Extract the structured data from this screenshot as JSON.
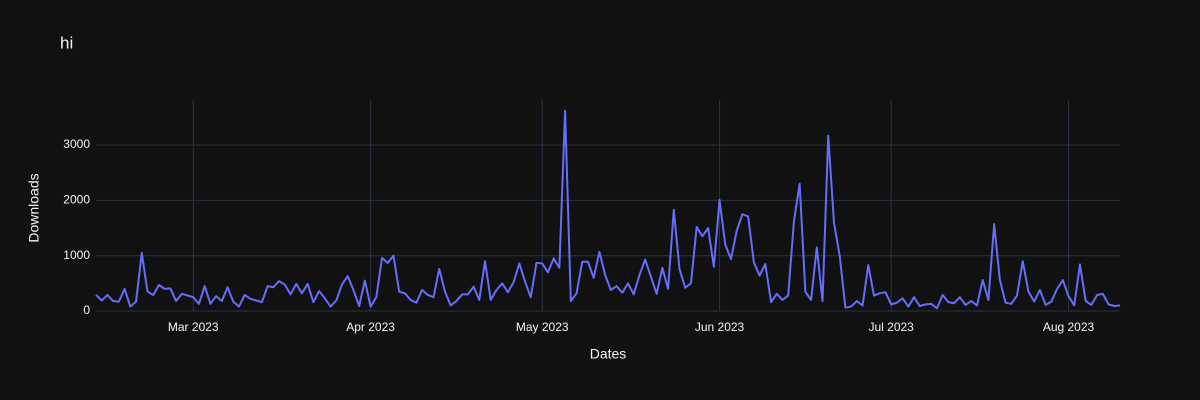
{
  "chart_data": {
    "type": "line",
    "title": "hi",
    "x_label": "Dates",
    "y_label": "Downloads",
    "x": [
      "2023-02-12",
      "2023-02-13",
      "2023-02-14",
      "2023-02-15",
      "2023-02-16",
      "2023-02-17",
      "2023-02-18",
      "2023-02-19",
      "2023-02-20",
      "2023-02-21",
      "2023-02-22",
      "2023-02-23",
      "2023-02-24",
      "2023-02-25",
      "2023-02-26",
      "2023-02-27",
      "2023-02-28",
      "2023-03-01",
      "2023-03-02",
      "2023-03-03",
      "2023-03-04",
      "2023-03-05",
      "2023-03-06",
      "2023-03-07",
      "2023-03-08",
      "2023-03-09",
      "2023-03-10",
      "2023-03-11",
      "2023-03-12",
      "2023-03-13",
      "2023-03-14",
      "2023-03-15",
      "2023-03-16",
      "2023-03-17",
      "2023-03-18",
      "2023-03-19",
      "2023-03-20",
      "2023-03-21",
      "2023-03-22",
      "2023-03-23",
      "2023-03-24",
      "2023-03-25",
      "2023-03-26",
      "2023-03-27",
      "2023-03-28",
      "2023-03-29",
      "2023-03-30",
      "2023-03-31",
      "2023-04-01",
      "2023-04-02",
      "2023-04-03",
      "2023-04-04",
      "2023-04-05",
      "2023-04-06",
      "2023-04-07",
      "2023-04-08",
      "2023-04-09",
      "2023-04-10",
      "2023-04-11",
      "2023-04-12",
      "2023-04-13",
      "2023-04-14",
      "2023-04-15",
      "2023-04-16",
      "2023-04-17",
      "2023-04-18",
      "2023-04-19",
      "2023-04-20",
      "2023-04-21",
      "2023-04-22",
      "2023-04-23",
      "2023-04-24",
      "2023-04-25",
      "2023-04-26",
      "2023-04-27",
      "2023-04-28",
      "2023-04-29",
      "2023-04-30",
      "2023-05-01",
      "2023-05-02",
      "2023-05-03",
      "2023-05-04",
      "2023-05-05",
      "2023-05-06",
      "2023-05-07",
      "2023-05-08",
      "2023-05-09",
      "2023-05-10",
      "2023-05-11",
      "2023-05-12",
      "2023-05-13",
      "2023-05-14",
      "2023-05-15",
      "2023-05-16",
      "2023-05-17",
      "2023-05-18",
      "2023-05-19",
      "2023-05-20",
      "2023-05-21",
      "2023-05-22",
      "2023-05-23",
      "2023-05-24",
      "2023-05-25",
      "2023-05-26",
      "2023-05-27",
      "2023-05-28",
      "2023-05-29",
      "2023-05-30",
      "2023-05-31",
      "2023-06-01",
      "2023-06-02",
      "2023-06-03",
      "2023-06-04",
      "2023-06-05",
      "2023-06-06",
      "2023-06-07",
      "2023-06-08",
      "2023-06-09",
      "2023-06-10",
      "2023-06-11",
      "2023-06-12",
      "2023-06-13",
      "2023-06-14",
      "2023-06-15",
      "2023-06-16",
      "2023-06-17",
      "2023-06-18",
      "2023-06-19",
      "2023-06-20",
      "2023-06-21",
      "2023-06-22",
      "2023-06-23",
      "2023-06-24",
      "2023-06-25",
      "2023-06-26",
      "2023-06-27",
      "2023-06-28",
      "2023-06-29",
      "2023-06-30",
      "2023-07-01",
      "2023-07-02",
      "2023-07-03",
      "2023-07-04",
      "2023-07-05",
      "2023-07-06",
      "2023-07-07",
      "2023-07-08",
      "2023-07-09",
      "2023-07-10",
      "2023-07-11",
      "2023-07-12",
      "2023-07-13",
      "2023-07-14",
      "2023-07-15",
      "2023-07-16",
      "2023-07-17",
      "2023-07-18",
      "2023-07-19",
      "2023-07-20",
      "2023-07-21",
      "2023-07-22",
      "2023-07-23",
      "2023-07-24",
      "2023-07-25",
      "2023-07-26",
      "2023-07-27",
      "2023-07-28",
      "2023-07-29",
      "2023-07-30",
      "2023-07-31",
      "2023-08-01",
      "2023-08-02",
      "2023-08-03",
      "2023-08-04",
      "2023-08-05",
      "2023-08-06",
      "2023-08-07",
      "2023-08-08",
      "2023-08-09",
      "2023-08-10"
    ],
    "values": [
      290,
      190,
      290,
      180,
      170,
      400,
      80,
      170,
      1050,
      350,
      290,
      470,
      400,
      410,
      180,
      310,
      280,
      250,
      130,
      450,
      130,
      270,
      180,
      430,
      170,
      80,
      290,
      220,
      190,
      160,
      450,
      430,
      540,
      480,
      300,
      490,
      320,
      490,
      160,
      360,
      230,
      80,
      190,
      480,
      630,
      380,
      90,
      550,
      80,
      250,
      960,
      870,
      1000,
      350,
      320,
      200,
      150,
      380,
      290,
      250,
      760,
      350,
      100,
      180,
      300,
      300,
      440,
      200,
      900,
      200,
      380,
      500,
      340,
      520,
      860,
      530,
      250,
      870,
      860,
      700,
      950,
      780,
      3620,
      180,
      320,
      890,
      890,
      600,
      1070,
      650,
      380,
      450,
      330,
      500,
      300,
      650,
      930,
      620,
      310,
      780,
      400,
      1830,
      760,
      420,
      500,
      1520,
      1350,
      1500,
      800,
      2010,
      1200,
      940,
      1450,
      1750,
      1710,
      880,
      640,
      850,
      160,
      310,
      200,
      280,
      1620,
      2300,
      350,
      200,
      1150,
      180,
      3170,
      1600,
      1000,
      60,
      80,
      180,
      100,
      830,
      280,
      320,
      340,
      120,
      150,
      230,
      80,
      250,
      90,
      120,
      130,
      50,
      290,
      160,
      140,
      250,
      110,
      180,
      100,
      560,
      200,
      1570,
      560,
      150,
      130,
      280,
      900,
      350,
      170,
      380,
      110,
      170,
      400,
      560,
      270,
      100,
      840,
      180,
      110,
      290,
      310,
      120,
      90,
      100
    ],
    "color": "#636efa",
    "xlim": [
      "2023-02-12",
      "2023-08-10"
    ],
    "xticks": [
      {
        "value": "2023-03-01",
        "label": "Mar 2023"
      },
      {
        "value": "2023-04-01",
        "label": "Apr 2023"
      },
      {
        "value": "2023-05-01",
        "label": "May 2023"
      },
      {
        "value": "2023-06-01",
        "label": "Jun 2023"
      },
      {
        "value": "2023-07-01",
        "label": "Jul 2023"
      },
      {
        "value": "2023-08-01",
        "label": "Aug 2023"
      }
    ],
    "ylim": [
      0,
      3815
    ],
    "yticks": [
      0,
      1000,
      2000,
      3000
    ],
    "grid": true
  }
}
